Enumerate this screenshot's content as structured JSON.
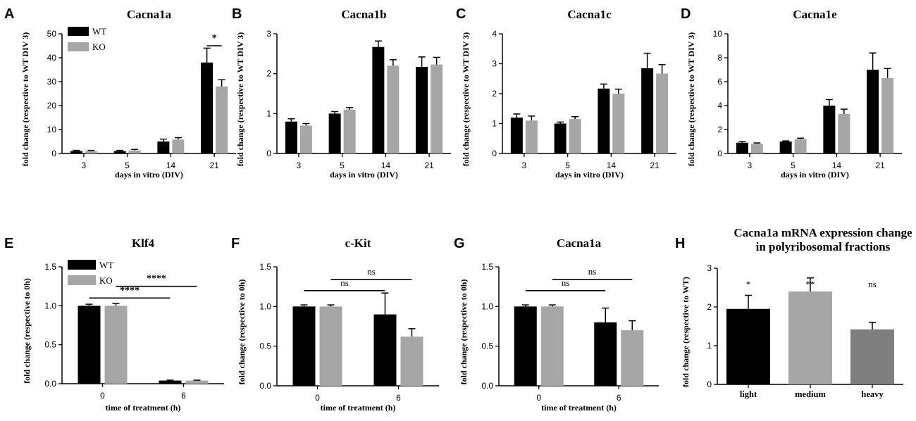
{
  "colors": {
    "wt": "#000000",
    "ko": "#a6a6a6",
    "dark_gray": "#7f7f7f",
    "axis": "#000000"
  },
  "chart_data": [
    {
      "id": "A",
      "letter": "A",
      "type": "bar",
      "title": "Cacna1a",
      "ylabel": "fold change (respective to WT DIV 3)",
      "xlabel": "days in vitro (DIV)",
      "categories": [
        "3",
        "5",
        "14",
        "21"
      ],
      "ylim": [
        0,
        50
      ],
      "yticks": [
        "0",
        "10",
        "20",
        "30",
        "40",
        "50"
      ],
      "series": [
        {
          "name": "WT",
          "values": [
            1.0,
            1.0,
            5.0,
            38.0
          ],
          "errors": [
            0.3,
            0.3,
            1.0,
            6.0
          ]
        },
        {
          "name": "KO",
          "values": [
            1.0,
            1.3,
            5.8,
            28.0
          ],
          "errors": [
            0.3,
            0.4,
            0.8,
            2.8
          ]
        }
      ],
      "legend": [
        "WT",
        "KO"
      ],
      "significance": [
        {
          "label": "*",
          "from": [
            3,
            0
          ],
          "to": [
            3,
            1
          ],
          "y": 45
        }
      ]
    },
    {
      "id": "B",
      "letter": "B",
      "type": "bar",
      "title": "Cacna1b",
      "ylabel": "fold change (respective to WT DIV 3)",
      "xlabel": "days in vitro (DIV)",
      "categories": [
        "3",
        "5",
        "14",
        "21"
      ],
      "ylim": [
        0,
        3
      ],
      "yticks": [
        "0",
        "1",
        "2",
        "3"
      ],
      "series": [
        {
          "name": "WT",
          "values": [
            0.8,
            1.0,
            2.67,
            2.17
          ],
          "errors": [
            0.07,
            0.05,
            0.15,
            0.25
          ]
        },
        {
          "name": "KO",
          "values": [
            0.7,
            1.1,
            2.2,
            2.23
          ],
          "errors": [
            0.05,
            0.05,
            0.15,
            0.18
          ]
        }
      ]
    },
    {
      "id": "C",
      "letter": "C",
      "type": "bar",
      "title": "Cacna1c",
      "ylabel": "fold change (respective to WT DIV 3)",
      "xlabel": "days in vitro (DIV)",
      "categories": [
        "3",
        "5",
        "14",
        "21"
      ],
      "ylim": [
        0,
        4
      ],
      "yticks": [
        "0",
        "1",
        "2",
        "3",
        "4"
      ],
      "series": [
        {
          "name": "WT",
          "values": [
            1.2,
            1.0,
            2.17,
            2.85
          ],
          "errors": [
            0.12,
            0.05,
            0.15,
            0.5
          ]
        },
        {
          "name": "KO",
          "values": [
            1.1,
            1.15,
            2.0,
            2.67
          ],
          "errors": [
            0.15,
            0.08,
            0.15,
            0.3
          ]
        }
      ]
    },
    {
      "id": "D",
      "letter": "D",
      "type": "bar",
      "title": "Cacna1e",
      "ylabel": "fold change (respective to WT DIV 3)",
      "xlabel": "days in vitro (DIV)",
      "categories": [
        "3",
        "5",
        "14",
        "21"
      ],
      "ylim": [
        0,
        10
      ],
      "yticks": [
        "0",
        "2",
        "4",
        "6",
        "8",
        "10"
      ],
      "series": [
        {
          "name": "WT",
          "values": [
            0.9,
            1.0,
            4.0,
            7.0
          ],
          "errors": [
            0.1,
            0.05,
            0.5,
            1.4
          ]
        },
        {
          "name": "KO",
          "values": [
            0.8,
            1.2,
            3.3,
            6.3
          ],
          "errors": [
            0.08,
            0.08,
            0.4,
            0.8
          ]
        }
      ]
    },
    {
      "id": "E",
      "letter": "E",
      "type": "bar",
      "title": "Klf4",
      "ylabel": "fold change (respective to 0h)",
      "xlabel": "time of treatment (h)",
      "categories": [
        "0",
        "6"
      ],
      "ylim": [
        0,
        1.5
      ],
      "yticks": [
        "0.0",
        "0.5",
        "1.0",
        "1.5"
      ],
      "series": [
        {
          "name": "WT",
          "values": [
            1.0,
            0.04
          ],
          "errors": [
            0.02,
            0.005
          ]
        },
        {
          "name": "KO",
          "values": [
            1.0,
            0.04
          ],
          "errors": [
            0.03,
            0.005
          ]
        }
      ],
      "legend": [
        "WT",
        "KO"
      ],
      "significance": [
        {
          "label": "****",
          "from": [
            1,
            1
          ],
          "to": [
            0,
            1
          ],
          "y": 1.25
        },
        {
          "label": "****",
          "from": [
            0,
            0
          ],
          "to": [
            1,
            0
          ],
          "y": 1.1
        }
      ]
    },
    {
      "id": "F",
      "letter": "F",
      "type": "bar",
      "title": "c-Kit",
      "ylabel": "fold change (respective to 0h)",
      "xlabel": "time of treatment (h)",
      "categories": [
        "0",
        "6"
      ],
      "ylim": [
        0,
        1.5
      ],
      "yticks": [
        "0.0",
        "0.5",
        "1.0",
        "1.5"
      ],
      "series": [
        {
          "name": "WT",
          "values": [
            1.0,
            0.9
          ],
          "errors": [
            0.02,
            0.27
          ]
        },
        {
          "name": "KO",
          "values": [
            1.0,
            0.62
          ],
          "errors": [
            0.02,
            0.1
          ]
        }
      ],
      "significance": [
        {
          "label": "ns",
          "from": [
            0,
            1
          ],
          "to": [
            1,
            1
          ],
          "y": 1.34
        },
        {
          "label": "ns",
          "from": [
            0,
            0
          ],
          "to": [
            1,
            0
          ],
          "y": 1.2
        }
      ]
    },
    {
      "id": "G",
      "letter": "G",
      "type": "bar",
      "title": "Cacna1a",
      "ylabel": "fold change (respective to 0h)",
      "xlabel": "time of treatment (h)",
      "categories": [
        "0",
        "6"
      ],
      "ylim": [
        0,
        1.5
      ],
      "yticks": [
        "0.0",
        "0.5",
        "1.0",
        "1.5"
      ],
      "series": [
        {
          "name": "WT",
          "values": [
            1.0,
            0.8
          ],
          "errors": [
            0.02,
            0.18
          ]
        },
        {
          "name": "KO",
          "values": [
            1.0,
            0.7
          ],
          "errors": [
            0.02,
            0.12
          ]
        }
      ],
      "significance": [
        {
          "label": "ns",
          "from": [
            0,
            1
          ],
          "to": [
            1,
            1
          ],
          "y": 1.34
        },
        {
          "label": "ns",
          "from": [
            0,
            0
          ],
          "to": [
            1,
            0
          ],
          "y": 1.2
        }
      ]
    },
    {
      "id": "H",
      "letter": "H",
      "type": "bar",
      "title": "Cacna1a mRNA expression change",
      "title_line2": "in polyribosomal fractions",
      "ylabel": "fold change (respective to WT)",
      "xlabel": "",
      "categories": [
        "light",
        "medium",
        "heavy"
      ],
      "ylim": [
        0,
        3
      ],
      "yticks": [
        "0",
        "1",
        "2",
        "3"
      ],
      "bars": [
        {
          "label": "light",
          "value": 1.95,
          "error": 0.35,
          "color": "#000000",
          "sig": "*"
        },
        {
          "label": "medium",
          "value": 2.4,
          "error": 0.35,
          "color": "#a6a6a6",
          "sig": "**"
        },
        {
          "label": "heavy",
          "value": 1.42,
          "error": 0.18,
          "color": "#7f7f7f",
          "sig": "ns"
        }
      ]
    }
  ]
}
